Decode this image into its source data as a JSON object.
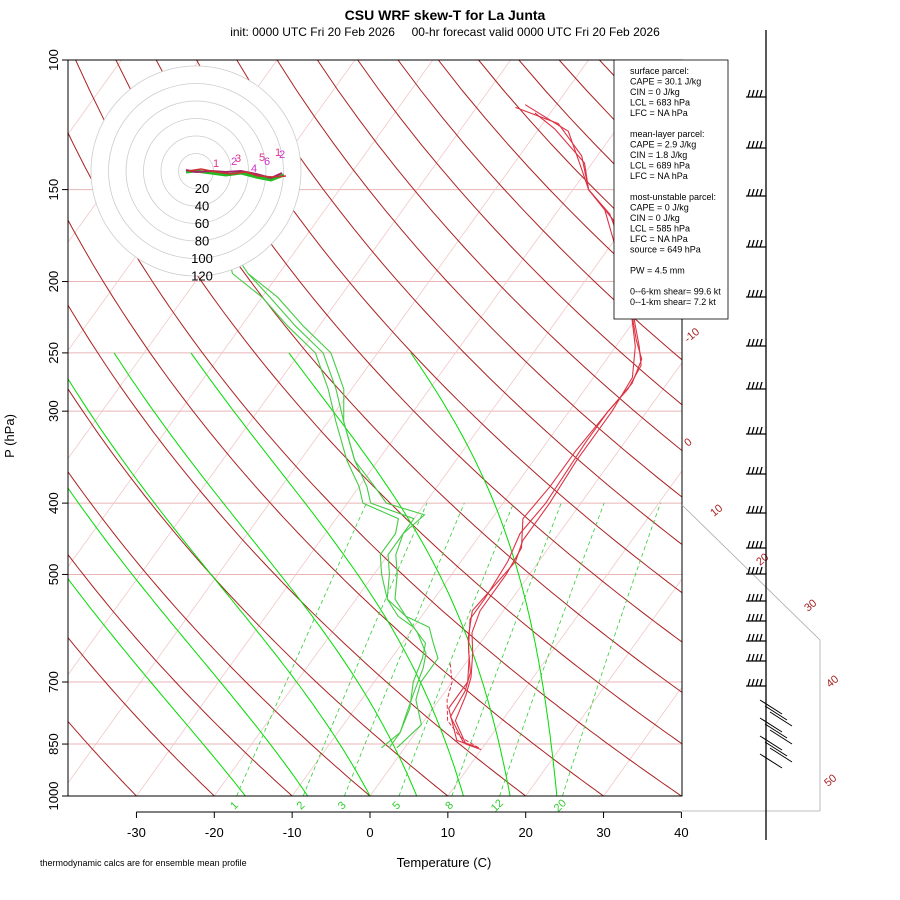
{
  "chart_data": {
    "type": "line",
    "title": "CSU WRF skew-T for La Junta",
    "subtitle": "init: 0000 UTC Fri 20 Feb 2026     00-hr forecast valid 0000 UTC Fri 20 Feb 2026",
    "xlabel": "Temperature (C)",
    "ylabel": "P (hPa)",
    "xlim": [
      -33,
      45
    ],
    "ylim": [
      1000,
      100
    ],
    "y_scale": "log",
    "x_ticks": [
      -30,
      -20,
      -10,
      0,
      10,
      20,
      30,
      40
    ],
    "y_ticks": [
      100,
      150,
      200,
      250,
      300,
      400,
      500,
      700,
      850,
      1000
    ],
    "dry_adiabat_labels": [
      "-10",
      "0",
      "10",
      "20",
      "30",
      "40",
      "50"
    ],
    "mixing_ratio_labels": [
      "1",
      "2",
      "3",
      "5",
      "8",
      "12",
      "20"
    ],
    "hodograph_ring_labels": [
      "20",
      "40",
      "60",
      "80",
      "100",
      "120"
    ],
    "series": [
      {
        "color": "#dd3344",
        "points": [
          [
            9.5,
            860
          ],
          [
            7,
            845
          ],
          [
            3,
            780
          ],
          [
            2.5,
            720
          ],
          [
            1.5,
            680
          ],
          [
            -1,
            630
          ],
          [
            -3.5,
            575
          ],
          [
            -3.5,
            540
          ],
          [
            -4,
            480
          ],
          [
            -5,
            440
          ],
          [
            -4.5,
            400
          ],
          [
            -5,
            330
          ],
          [
            -5,
            300
          ],
          [
            -4.5,
            280
          ],
          [
            -5,
            260
          ],
          [
            -7,
            245
          ],
          [
            -11,
            220
          ],
          [
            -16,
            190
          ],
          [
            -22,
            165
          ],
          [
            -28,
            150
          ],
          [
            -31,
            140
          ],
          [
            -36,
            125
          ],
          [
            -44,
            115
          ]
        ]
      },
      {
        "color": "#dd3344",
        "points": [
          [
            9,
            858
          ],
          [
            6,
            840
          ],
          [
            2,
            760
          ],
          [
            2,
            700
          ],
          [
            0,
            650
          ],
          [
            -2,
            610
          ],
          [
            -4,
            560
          ],
          [
            -3.5,
            520
          ],
          [
            -3,
            480
          ],
          [
            -4,
            450
          ],
          [
            -4,
            400
          ],
          [
            -4.5,
            350
          ],
          [
            -4.5,
            300
          ],
          [
            -5,
            270
          ],
          [
            -7.5,
            245
          ],
          [
            -12,
            215
          ],
          [
            -18,
            185
          ],
          [
            -24,
            160
          ],
          [
            -28,
            150
          ],
          [
            -32,
            135
          ],
          [
            -38,
            122
          ],
          [
            -45,
            116
          ]
        ]
      },
      {
        "color": "#dd3344",
        "points": [
          [
            10,
            865
          ],
          [
            7.5,
            850
          ],
          [
            4,
            790
          ],
          [
            3,
            730
          ],
          [
            2,
            690
          ],
          [
            0,
            640
          ],
          [
            -2,
            600
          ],
          [
            -3,
            560
          ],
          [
            -3,
            500
          ],
          [
            -3.5,
            460
          ],
          [
            -6,
            420
          ],
          [
            -5.5,
            380
          ],
          [
            -5.5,
            340
          ],
          [
            -5,
            300
          ],
          [
            -4.5,
            275
          ],
          [
            -5.5,
            255
          ],
          [
            -8,
            240
          ],
          [
            -12,
            215
          ],
          [
            -17,
            185
          ],
          [
            -23,
            162
          ],
          [
            -28,
            150
          ],
          [
            -31,
            138
          ],
          [
            -38,
            124
          ],
          [
            -42,
            118
          ]
        ]
      },
      {
        "color": "#44cc44",
        "points": [
          [
            -2,
            860
          ],
          [
            -2,
            820
          ],
          [
            -3,
            760
          ],
          [
            -5,
            700
          ],
          [
            -6,
            650
          ],
          [
            -7,
            620
          ],
          [
            -10,
            590
          ],
          [
            -13,
            570
          ],
          [
            -16,
            540
          ],
          [
            -18,
            500
          ],
          [
            -20,
            470
          ],
          [
            -20,
            440
          ],
          [
            -20,
            420
          ],
          [
            -27,
            400
          ],
          [
            -29,
            380
          ],
          [
            -33,
            350
          ],
          [
            -38,
            310
          ],
          [
            -41,
            280
          ],
          [
            -46,
            250
          ],
          [
            -52,
            230
          ],
          [
            -58,
            210
          ],
          [
            -64,
            195
          ],
          [
            -67,
            185
          ]
        ]
      },
      {
        "color": "#44cc44",
        "points": [
          [
            -1,
            860
          ],
          [
            0,
            800
          ],
          [
            -3,
            740
          ],
          [
            -4,
            700
          ],
          [
            -4,
            650
          ],
          [
            -6,
            620
          ],
          [
            -8,
            590
          ],
          [
            -12,
            570
          ],
          [
            -15,
            540
          ],
          [
            -17,
            500
          ],
          [
            -19,
            470
          ],
          [
            -20,
            440
          ],
          [
            -19,
            415
          ],
          [
            -25,
            400
          ],
          [
            -28,
            380
          ],
          [
            -33,
            350
          ],
          [
            -38,
            310
          ],
          [
            -42,
            280
          ],
          [
            -47,
            250
          ],
          [
            -53,
            230
          ],
          [
            -59,
            210
          ],
          [
            -64,
            195
          ]
        ]
      },
      {
        "color": "#44cc44",
        "points": [
          [
            -3,
            860
          ],
          [
            -2,
            820
          ],
          [
            -3,
            770
          ],
          [
            -4,
            720
          ],
          [
            -5,
            670
          ],
          [
            -6,
            640
          ],
          [
            -9,
            600
          ],
          [
            -12,
            570
          ],
          [
            -16,
            540
          ],
          [
            -19,
            500
          ],
          [
            -21,
            470
          ],
          [
            -21,
            440
          ],
          [
            -22,
            420
          ],
          [
            -28,
            400
          ],
          [
            -30,
            380
          ],
          [
            -34,
            350
          ],
          [
            -39,
            310
          ],
          [
            -43,
            280
          ],
          [
            -48,
            250
          ],
          [
            -54,
            230
          ],
          [
            -60,
            210
          ],
          [
            -66,
            195
          ],
          [
            -68,
            185
          ]
        ]
      }
    ]
  },
  "info_box": {
    "lines": [
      "surface parcel:",
      "CAPE = 30.1 J/kg",
      "CIN = 0 J/kg",
      "LCL = 683 hPa",
      "LFC = NA hPa",
      "",
      "mean-layer parcel:",
      "CAPE = 2.9 J/kg",
      "CIN = 1.8 J/kg",
      "LCL = 689 hPa",
      "LFC = NA hPa",
      "",
      "most-unstable parcel:",
      "CAPE = 0 J/kg",
      "CIN = 0 J/kg",
      "LCL = 585 hPa",
      "LFC = NA hPa",
      "source = 649 hPa",
      "",
      "PW =  4.5 mm",
      "",
      "0--6-km shear= 99.6 kt",
      "0--1-km shear= 7.2 kt"
    ]
  },
  "footnote": "thermodynamic calcs are for ensemble mean profile",
  "colors": {
    "temperature": "#dd3344",
    "dewpoint": "#44cc44",
    "dry_adiabat": "#aa2222",
    "moist_adiabat": "#00dd00",
    "mixing_ratio": "#33cc33",
    "isobar": "#e8b4b4",
    "isotherm": "#f0c8c8"
  }
}
